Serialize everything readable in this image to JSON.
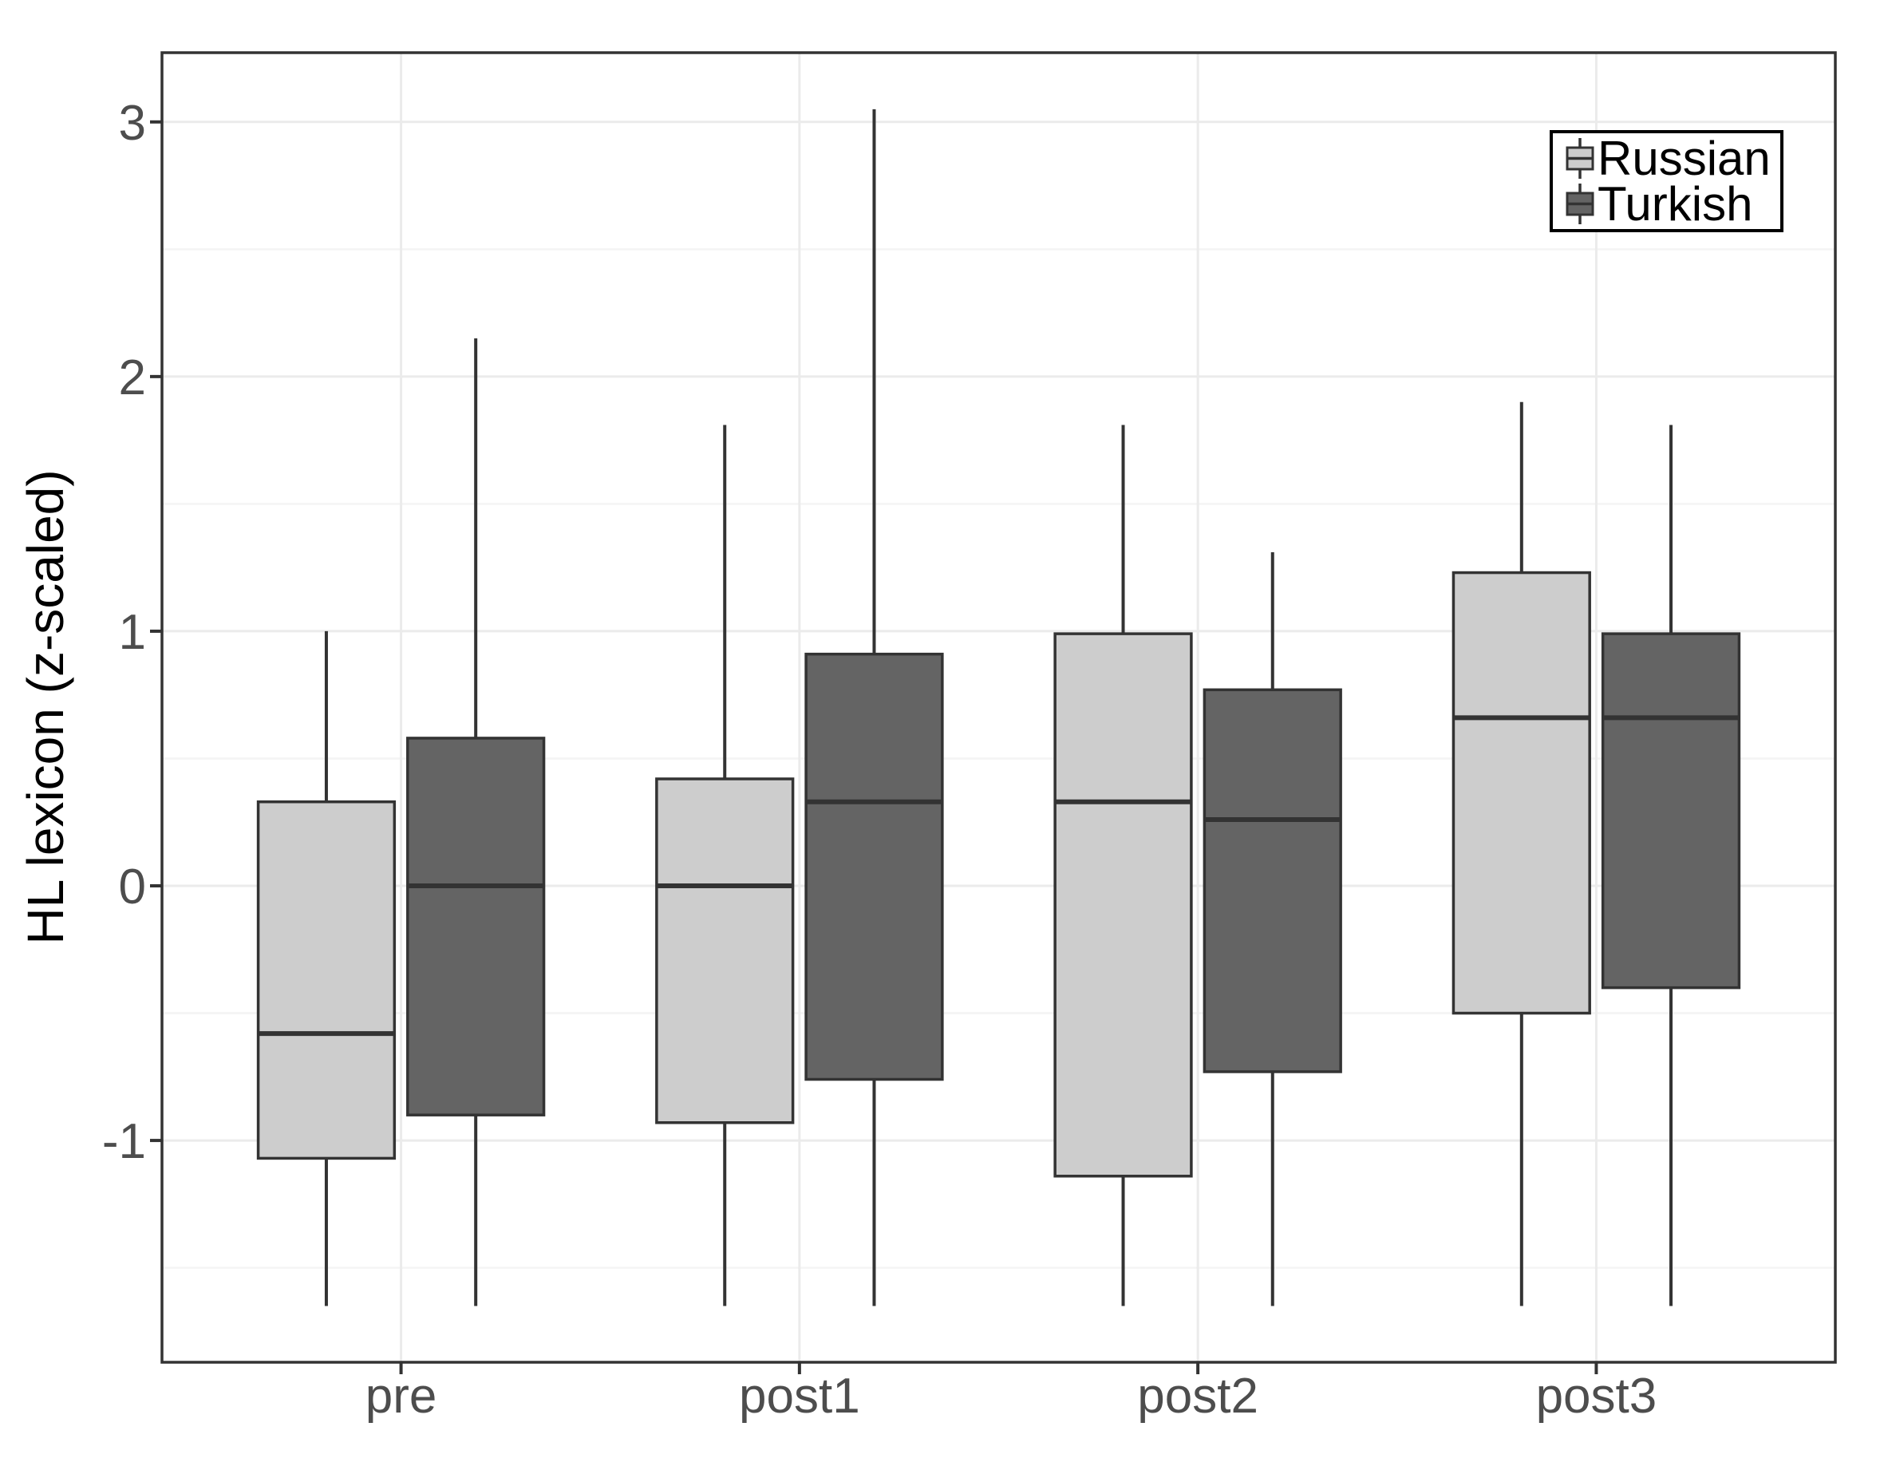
{
  "figure": {
    "ylabel": "HL lexicon (z-scaled)",
    "background": "#ffffff"
  },
  "legend": {
    "position": "top-right-inside",
    "entries": [
      {
        "label": "Russian",
        "fill": "#cdcdcd"
      },
      {
        "label": "Turkish",
        "fill": "#646464"
      }
    ]
  },
  "chart_data": {
    "type": "boxplot",
    "orientation": "vertical",
    "title": "",
    "xlabel": "",
    "ylabel": "HL lexicon (z-scaled)",
    "categories": [
      "pre",
      "post1",
      "post2",
      "post3"
    ],
    "series": [
      {
        "name": "Russian",
        "fill": "#cdcdcd",
        "boxes": [
          {
            "category": "pre",
            "low": -1.65,
            "q1": -1.07,
            "median": -0.58,
            "q3": 0.33,
            "high": 1.0
          },
          {
            "category": "post1",
            "low": -1.65,
            "q1": -0.93,
            "median": 0.0,
            "q3": 0.42,
            "high": 1.81
          },
          {
            "category": "post2",
            "low": -1.65,
            "q1": -1.14,
            "median": 0.33,
            "q3": 0.99,
            "high": 1.81
          },
          {
            "category": "post3",
            "low": -1.65,
            "q1": -0.5,
            "median": 0.66,
            "q3": 1.23,
            "high": 1.9
          }
        ]
      },
      {
        "name": "Turkish",
        "fill": "#646464",
        "boxes": [
          {
            "category": "pre",
            "low": -1.65,
            "q1": -0.9,
            "median": 0.0,
            "q3": 0.58,
            "high": 2.15
          },
          {
            "category": "post1",
            "low": -1.65,
            "q1": -0.76,
            "median": 0.33,
            "q3": 0.91,
            "high": 3.05
          },
          {
            "category": "post2",
            "low": -1.65,
            "q1": -0.73,
            "median": 0.26,
            "q3": 0.77,
            "high": 1.31
          },
          {
            "category": "post3",
            "low": -1.65,
            "q1": -0.4,
            "median": 0.66,
            "q3": 0.99,
            "high": 1.81
          }
        ]
      }
    ],
    "outliers": [],
    "ylim": [
      -1.871,
      3.272
    ],
    "yticks": [
      -1,
      0,
      1,
      2,
      3
    ],
    "ytick_labels": [
      "-1",
      "0",
      "1",
      "2",
      "3"
    ],
    "minor_gridlines": [
      -1.5,
      -0.5,
      0.5,
      1.5,
      2.5
    ],
    "grid": "major-and-minor",
    "legend_position": "top-right-inside"
  },
  "style": {
    "panel_bg": "#ffffff",
    "panel_border": "#333333",
    "grid_major": "#ebebeb",
    "grid_minor": "#f4f4f4",
    "box_border": "#333333",
    "median_color": "#333333",
    "whisker_color": "#333333",
    "tick_color": "#333333",
    "tick_label_color": "#4d4d4d",
    "axis_title_color": "#000000",
    "legend_border": "#000000",
    "legend_text_color": "#000000"
  }
}
